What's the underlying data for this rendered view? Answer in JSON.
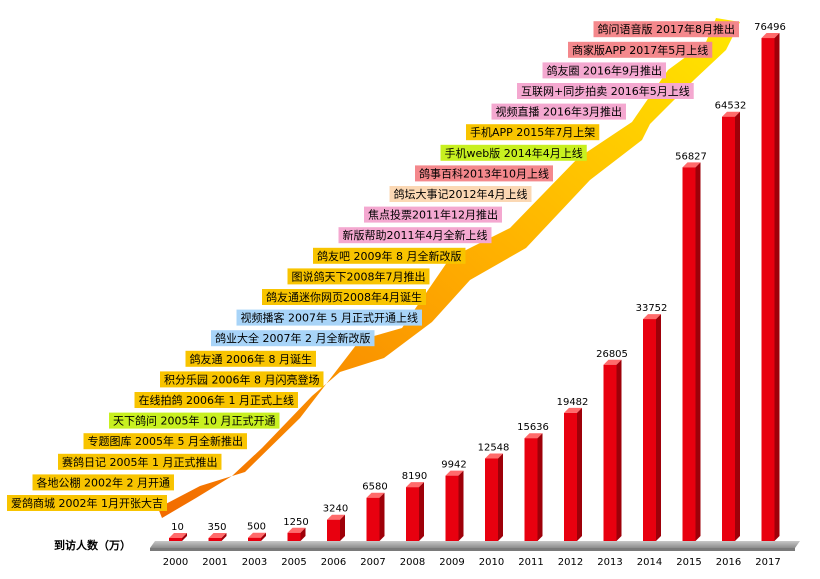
{
  "chart_data": {
    "type": "bar",
    "ylabel": "到访人数（万）",
    "categories": [
      "2000",
      "2001",
      "2003",
      "2005",
      "2006",
      "2007",
      "2008",
      "2009",
      "2010",
      "2011",
      "2012",
      "2013",
      "2014",
      "2015",
      "2016",
      "2017"
    ],
    "values": [
      10,
      350,
      500,
      1250,
      3240,
      6580,
      8190,
      9942,
      12548,
      15636,
      19482,
      26805,
      33752,
      56827,
      64532,
      76496
    ],
    "ylim": [
      0,
      80000
    ],
    "grid": false,
    "legend": "none",
    "bar_color": "#e8000f",
    "arrow_colors": [
      "#f26b00",
      "#ffe800"
    ],
    "annotations": [
      {
        "text": "爱鸽商城 2002年 1月开张大吉",
        "color": "#f8c400"
      },
      {
        "text": "各地公棚 2002年 2 月开通",
        "color": "#f8c400"
      },
      {
        "text": "赛鸽日记 2005年 1 月正式推出",
        "color": "#f8c400"
      },
      {
        "text": "专题图库 2005年 5 月全新推出",
        "color": "#f8c400"
      },
      {
        "text": "天下鸽问 2005年 10 月正式开通",
        "color": "#c8f020"
      },
      {
        "text": "在线拍鸽 2006年 1 月正式上线",
        "color": "#f8c400"
      },
      {
        "text": "积分乐园 2006年 8 月闪亮登场",
        "color": "#f8c400"
      },
      {
        "text": "鸽友通 2006年 8 月诞生",
        "color": "#f8c400"
      },
      {
        "text": "鸽业大全 2007年 2 月全新改版",
        "color": "#a8d4f8"
      },
      {
        "text": "视频播客 2007年 5 月正式开通上线",
        "color": "#a8d4f8"
      },
      {
        "text": "鸽友通迷你网页2008年4月诞生",
        "color": "#f8c400"
      },
      {
        "text": "图说鸽天下2008年7月推出",
        "color": "#f8c400"
      },
      {
        "text": "鸽友吧 2009年 8 月全新改版",
        "color": "#f8c400"
      },
      {
        "text": "新版帮助2011年4月全新上线",
        "color": "#f4a8d0"
      },
      {
        "text": "焦点投票2011年12月推出",
        "color": "#f4a8d0"
      },
      {
        "text": "鸽坛大事记2012年4月上线",
        "color": "#fbd8b4"
      },
      {
        "text": "鸽事百科2013年10月上线",
        "color": "#f4888c"
      },
      {
        "text": "手机web版 2014年4月上线",
        "color": "#c8f020"
      },
      {
        "text": "手机APP 2015年7月上架",
        "color": "#f8c400"
      },
      {
        "text": "视频直播 2016年3月推出",
        "color": "#f4a8d0"
      },
      {
        "text": "互联网+同步拍卖 2016年5月上线",
        "color": "#f4a8d0"
      },
      {
        "text": "鸽友圈 2016年9月推出",
        "color": "#f4a8d0"
      },
      {
        "text": "商家版APP 2017年5月上线",
        "color": "#f4888c"
      },
      {
        "text": "鸽问语音版 2017年8月推出",
        "color": "#f4888c"
      }
    ]
  }
}
